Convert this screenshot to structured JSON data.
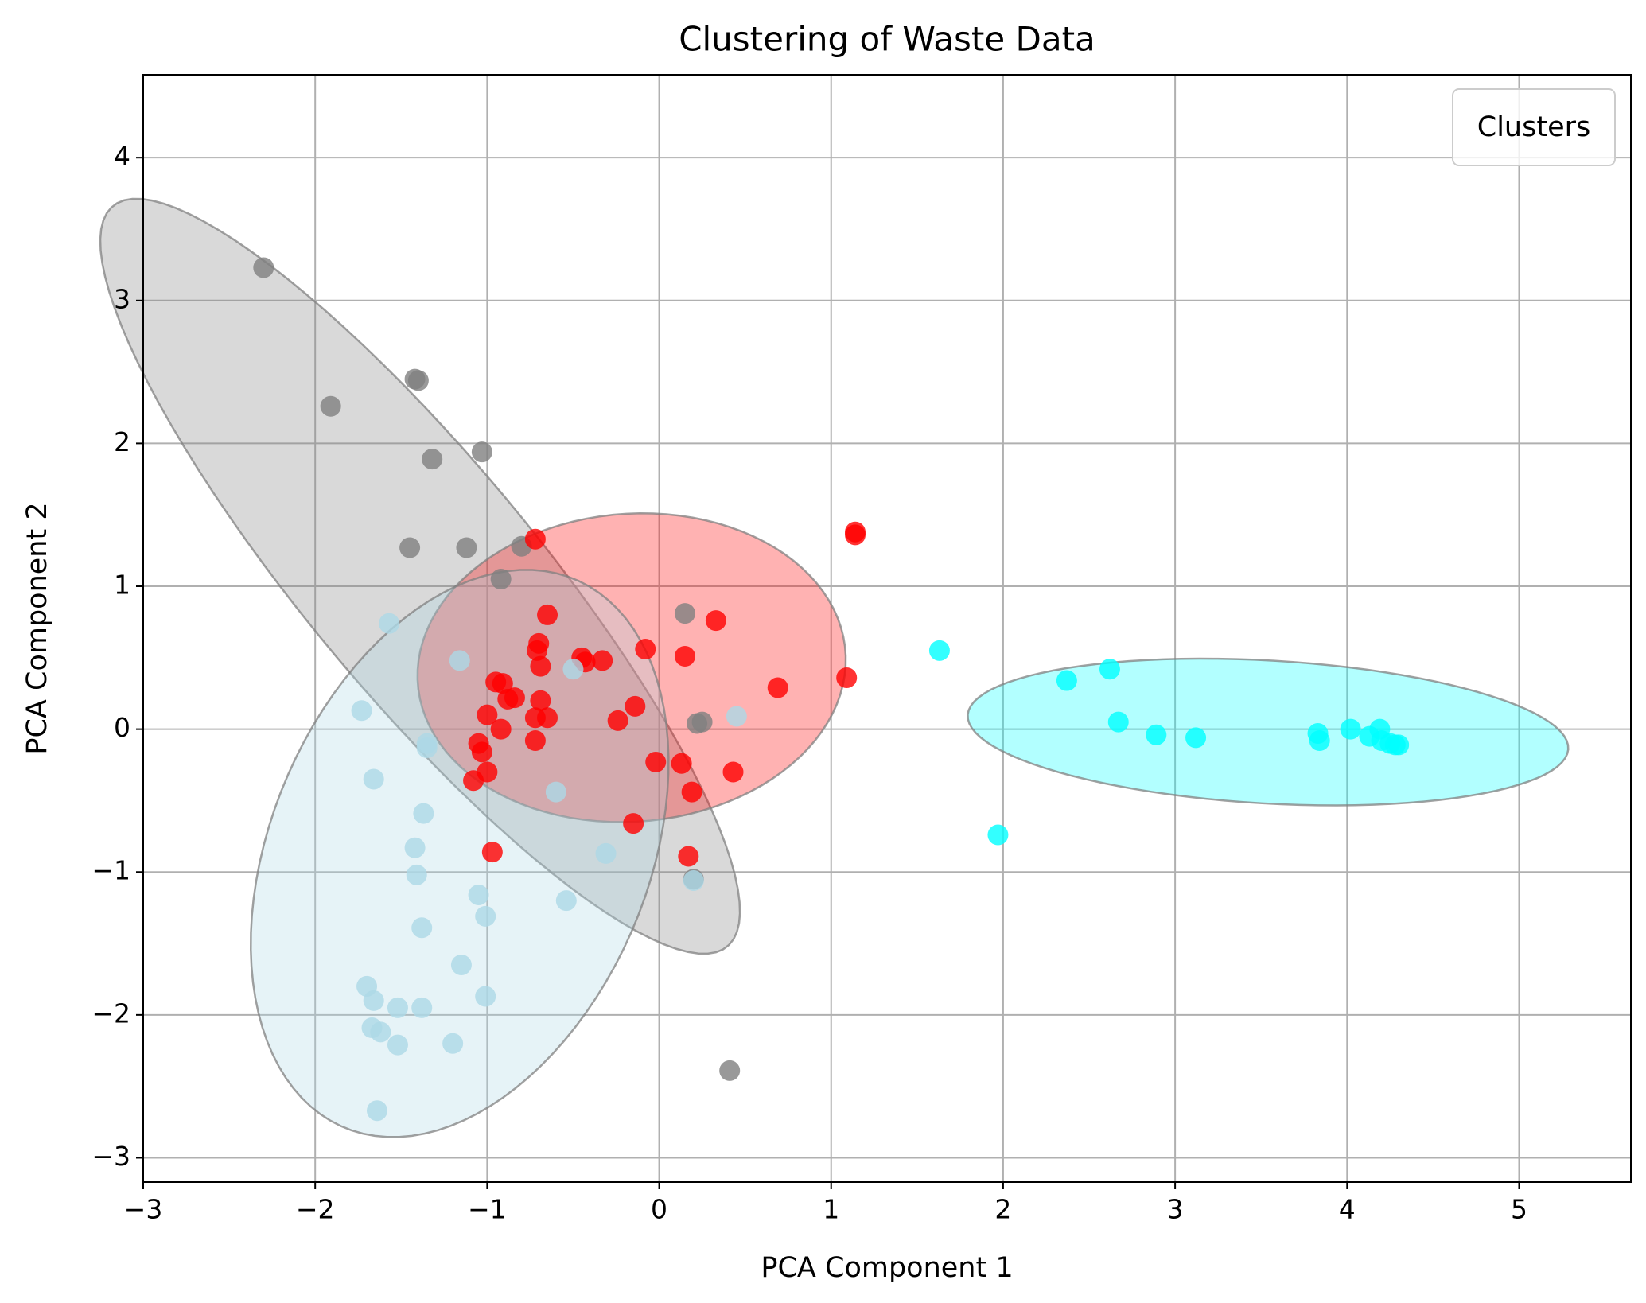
{
  "chart_data": {
    "type": "scatter",
    "title": "Clustering of Waste Data",
    "xlabel": "PCA Component 1",
    "ylabel": "PCA Component 2",
    "xlim": [
      -3.0,
      5.65
    ],
    "ylim": [
      -3.17,
      4.58
    ],
    "xticks": [
      -3,
      -2,
      -1,
      0,
      1,
      2,
      3,
      4,
      5
    ],
    "yticks": [
      -3,
      -2,
      -1,
      0,
      1,
      2,
      3,
      4
    ],
    "xtick_labels": [
      "−3",
      "−2",
      "−1",
      "0",
      "1",
      "2",
      "3",
      "4",
      "5"
    ],
    "ytick_labels": [
      "−3",
      "−2",
      "−1",
      "0",
      "1",
      "2",
      "3",
      "4"
    ],
    "grid": true,
    "legend": {
      "title": "Clusters",
      "placement": "top-right"
    },
    "series": [
      {
        "color": "#808080",
        "ellipse": {
          "cx": -1.39,
          "cy": 1.07,
          "width": 1.44,
          "height": 6.3,
          "angle": 34
        },
        "points": [
          [
            -2.3,
            3.23
          ],
          [
            -1.42,
            2.45
          ],
          [
            -1.4,
            2.44
          ],
          [
            -1.91,
            2.26
          ],
          [
            -1.32,
            1.89
          ],
          [
            -1.03,
            1.94
          ],
          [
            -1.45,
            1.27
          ],
          [
            -1.12,
            1.27
          ],
          [
            -0.8,
            1.28
          ],
          [
            -0.92,
            1.05
          ],
          [
            0.15,
            0.81
          ],
          [
            0.22,
            0.04
          ],
          [
            0.25,
            0.05
          ],
          [
            0.2,
            -1.05
          ],
          [
            0.41,
            -2.39
          ]
        ]
      },
      {
        "color": "#ff0000",
        "ellipse": {
          "cx": -0.16,
          "cy": 0.43,
          "width": 2.5,
          "height": 2.15,
          "angle": 10
        },
        "points": [
          [
            -0.72,
            1.33
          ],
          [
            1.14,
            1.38
          ],
          [
            1.14,
            1.36
          ],
          [
            -0.65,
            0.8
          ],
          [
            0.33,
            0.76
          ],
          [
            -0.7,
            0.6
          ],
          [
            -0.71,
            0.55
          ],
          [
            -0.45,
            0.5
          ],
          [
            -0.33,
            0.48
          ],
          [
            -0.43,
            0.47
          ],
          [
            -0.08,
            0.56
          ],
          [
            0.15,
            0.51
          ],
          [
            -0.69,
            0.44
          ],
          [
            -0.95,
            0.33
          ],
          [
            -0.91,
            0.32
          ],
          [
            -0.88,
            0.21
          ],
          [
            -0.84,
            0.22
          ],
          [
            -0.69,
            0.2
          ],
          [
            -0.14,
            0.16
          ],
          [
            0.69,
            0.29
          ],
          [
            1.09,
            0.36
          ],
          [
            -1.0,
            0.1
          ],
          [
            -0.72,
            0.08
          ],
          [
            -0.65,
            0.08
          ],
          [
            -0.24,
            0.06
          ],
          [
            -0.92,
            0.0
          ],
          [
            -0.72,
            -0.08
          ],
          [
            -1.05,
            -0.1
          ],
          [
            -1.03,
            -0.16
          ],
          [
            -0.02,
            -0.23
          ],
          [
            0.13,
            -0.24
          ],
          [
            -1.08,
            -0.36
          ],
          [
            -1.0,
            -0.3
          ],
          [
            0.43,
            -0.3
          ],
          [
            0.19,
            -0.44
          ],
          [
            -0.15,
            -0.66
          ],
          [
            -0.97,
            -0.86
          ],
          [
            0.17,
            -0.89
          ]
        ]
      },
      {
        "color": "#add8e6",
        "ellipse": {
          "cx": -1.16,
          "cy": -0.87,
          "width": 2.24,
          "height": 4.08,
          "angle": -16
        },
        "points": [
          [
            -1.57,
            0.74
          ],
          [
            -1.16,
            0.48
          ],
          [
            -0.5,
            0.42
          ],
          [
            -1.73,
            0.13
          ],
          [
            -1.35,
            -0.1
          ],
          [
            -1.35,
            -0.13
          ],
          [
            0.45,
            0.09
          ],
          [
            -1.66,
            -0.35
          ],
          [
            -0.6,
            -0.44
          ],
          [
            -1.37,
            -0.59
          ],
          [
            -1.42,
            -0.83
          ],
          [
            -1.41,
            -1.02
          ],
          [
            -0.31,
            -0.87
          ],
          [
            0.2,
            -1.06
          ],
          [
            -1.05,
            -1.16
          ],
          [
            -0.54,
            -1.2
          ],
          [
            -1.01,
            -1.31
          ],
          [
            -1.38,
            -1.39
          ],
          [
            -1.15,
            -1.65
          ],
          [
            -1.7,
            -1.8
          ],
          [
            -1.66,
            -1.9
          ],
          [
            -1.01,
            -1.87
          ],
          [
            -1.52,
            -1.95
          ],
          [
            -1.38,
            -1.95
          ],
          [
            -1.67,
            -2.09
          ],
          [
            -1.62,
            -2.12
          ],
          [
            -1.52,
            -2.21
          ],
          [
            -1.2,
            -2.2
          ],
          [
            -1.64,
            -2.67
          ]
        ]
      },
      {
        "color": "#00ffff",
        "ellipse": {
          "cx": 3.54,
          "cy": -0.02,
          "width": 3.5,
          "height": 1.0,
          "angle": -4
        },
        "points": [
          [
            1.63,
            0.55
          ],
          [
            2.37,
            0.34
          ],
          [
            2.62,
            0.42
          ],
          [
            2.67,
            0.05
          ],
          [
            2.89,
            -0.04
          ],
          [
            3.12,
            -0.06
          ],
          [
            3.83,
            -0.03
          ],
          [
            3.84,
            -0.08
          ],
          [
            4.02,
            0.0
          ],
          [
            4.13,
            -0.05
          ],
          [
            4.19,
            0.0
          ],
          [
            4.2,
            -0.08
          ],
          [
            4.25,
            -0.1
          ],
          [
            4.28,
            -0.11
          ],
          [
            4.3,
            -0.11
          ],
          [
            1.97,
            -0.74
          ]
        ]
      }
    ]
  }
}
